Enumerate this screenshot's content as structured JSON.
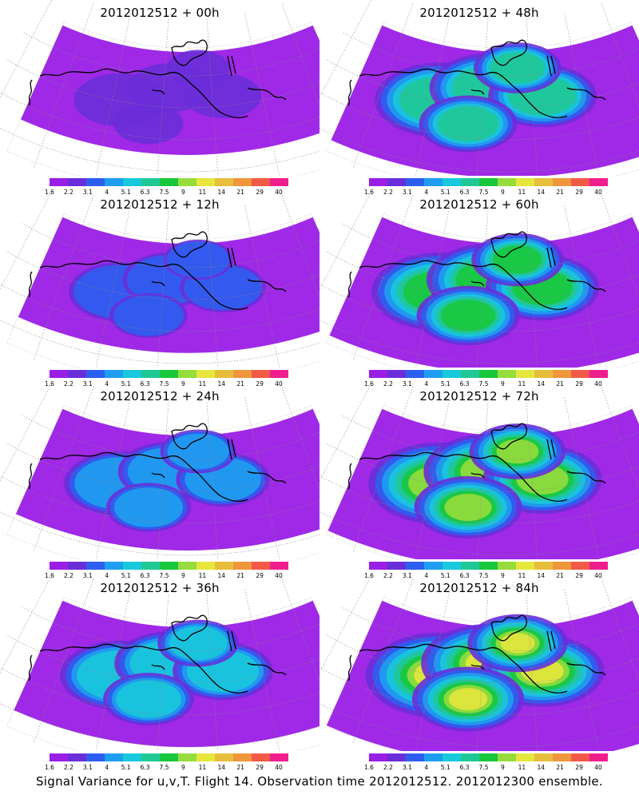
{
  "panels": [
    {
      "title": "2012012512 + 00h",
      "intensity": 0.15
    },
    {
      "title": "2012012512 + 48h",
      "intensity": 0.62
    },
    {
      "title": "2012012512 + 12h",
      "intensity": 0.28
    },
    {
      "title": "2012012512 + 60h",
      "intensity": 0.7
    },
    {
      "title": "2012012512 + 24h",
      "intensity": 0.4
    },
    {
      "title": "2012012512 + 72h",
      "intensity": 0.78
    },
    {
      "title": "2012012512 + 36h",
      "intensity": 0.5
    },
    {
      "title": "2012012512 + 84h",
      "intensity": 0.85
    }
  ],
  "colorbar": {
    "labels": [
      "1.6",
      "2.2",
      "3.1",
      "4",
      "5.1",
      "6.3",
      "7.5",
      "9",
      "11",
      "14",
      "21",
      "29",
      "40"
    ],
    "colors": [
      "#9a1ee6",
      "#6a2ed8",
      "#2e5ef0",
      "#1e9ef0",
      "#18c8dc",
      "#20c896",
      "#18c83c",
      "#96dc3c",
      "#e6e63c",
      "#e6be3c",
      "#f0963c",
      "#f05a46",
      "#f01e8c"
    ]
  },
  "footer": "Signal Variance for u,v,T. Flight 14. Observation time 2012012512. 2012012300 ensemble."
}
